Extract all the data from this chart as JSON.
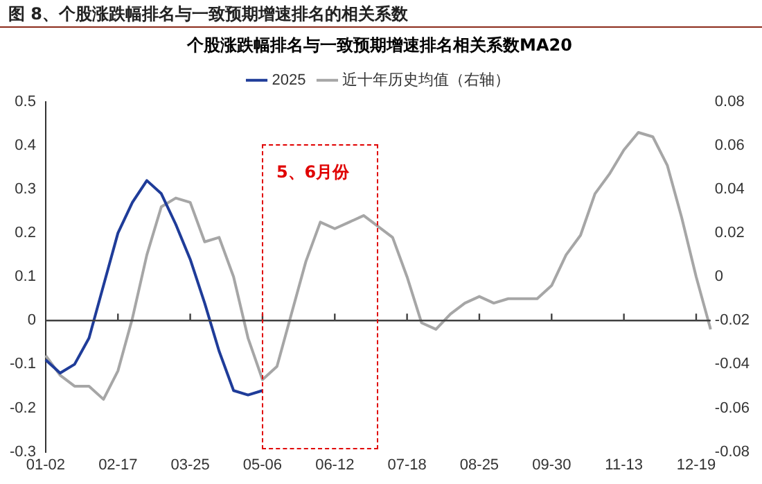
{
  "chart_data": {
    "type": "line",
    "title": "图 8、个股涨跌幅排名与一致预期增速排名的相关系数",
    "subtitle": "个股涨跌幅排名与一致预期增速排名相关系数MA20",
    "categories": [
      "01-02",
      null,
      null,
      null,
      null,
      "02-17",
      null,
      null,
      null,
      null,
      "03-25",
      null,
      null,
      null,
      null,
      "05-06",
      null,
      null,
      null,
      null,
      "06-12",
      null,
      null,
      null,
      null,
      "07-18",
      null,
      null,
      null,
      null,
      "08-25",
      null,
      null,
      null,
      null,
      "09-30",
      null,
      null,
      null,
      null,
      "11-13",
      null,
      null,
      null,
      null,
      "12-19",
      null
    ],
    "series": [
      {
        "name": "2025",
        "color": "#1f3c99",
        "values": [
          -0.09,
          -0.12,
          -0.1,
          -0.04,
          0.08,
          0.2,
          0.27,
          0.32,
          0.29,
          0.22,
          0.14,
          0.04,
          -0.07,
          -0.16,
          -0.17,
          -0.16,
          null,
          null,
          null,
          null,
          null,
          null,
          null,
          null,
          null,
          null,
          null,
          null,
          null,
          null,
          null,
          null,
          null,
          null,
          null,
          null,
          null,
          null,
          null,
          null,
          null,
          null,
          null,
          null,
          null,
          null,
          null
        ]
      },
      {
        "name": "近十年历史均值（右轴）",
        "color": "#a6a6a6",
        "axis": "y2",
        "values": [
          -0.036,
          -0.045,
          -0.05,
          -0.05,
          -0.056,
          -0.043,
          -0.019,
          0.01,
          0.032,
          0.036,
          0.034,
          0.016,
          0.018,
          0.0,
          -0.028,
          -0.047,
          -0.041,
          -0.017,
          0.007,
          0.025,
          0.022,
          0.025,
          0.028,
          0.023,
          0.018,
          0.0,
          -0.021,
          -0.024,
          -0.017,
          -0.012,
          -0.009,
          -0.012,
          -0.01,
          -0.01,
          -0.01,
          -0.004,
          0.01,
          0.019,
          0.038,
          0.047,
          0.058,
          0.066,
          0.064,
          0.051,
          0.027,
          0.0,
          -0.024
        ]
      }
    ],
    "ylim": [
      -0.3,
      0.5
    ],
    "yticks": [
      -0.3,
      -0.2,
      -0.1,
      0,
      0.1,
      0.2,
      0.3,
      0.4,
      0.5
    ],
    "y2lim": [
      -0.08,
      0.08
    ],
    "y2ticks": [
      -0.08,
      -0.06,
      -0.04,
      -0.02,
      0,
      0.02,
      0.04,
      0.06,
      0.08
    ],
    "ref_lines": [
      {
        "axis": "y",
        "value": 0,
        "color": "#404040"
      }
    ],
    "annotations": [
      "5、6月份"
    ],
    "grid": false,
    "legend": "top"
  }
}
